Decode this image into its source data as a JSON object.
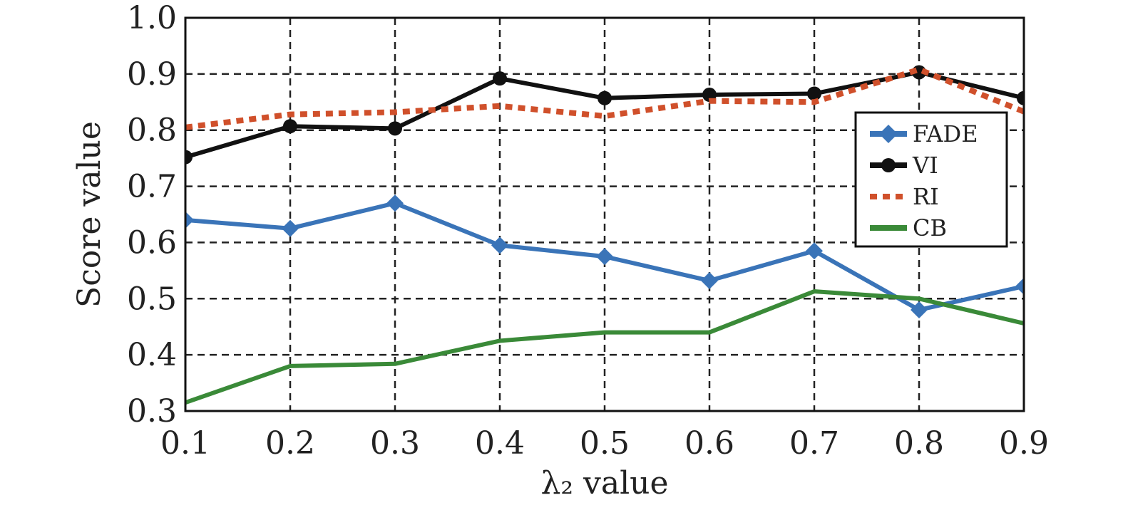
{
  "chart_data": {
    "type": "line",
    "title": "",
    "xlabel": "λ₂ value",
    "ylabel": "Score value",
    "x": [
      0.1,
      0.2,
      0.3,
      0.4,
      0.5,
      0.6,
      0.7,
      0.8,
      0.9
    ],
    "x_tick_labels": [
      "0.1",
      "0.2",
      "0.3",
      "0.4",
      "0.5",
      "0.6",
      "0.7",
      "0.8",
      "0.9"
    ],
    "y_tick_labels": [
      "0.3",
      "0.4",
      "0.5",
      "0.6",
      "0.7",
      "0.8",
      "0.9",
      "1.0"
    ],
    "xlim": [
      0.1,
      0.9
    ],
    "ylim": [
      0.3,
      1.0
    ],
    "grid": true,
    "legend_position": "right",
    "series": [
      {
        "name": "FADE",
        "color": "#3a74b8",
        "style": "solid",
        "marker": "diamond",
        "values": [
          0.64,
          0.625,
          0.67,
          0.595,
          0.575,
          0.532,
          0.585,
          0.48,
          0.522
        ]
      },
      {
        "name": "VI",
        "color": "#111111",
        "style": "solid",
        "marker": "circle",
        "values": [
          0.752,
          0.807,
          0.803,
          0.892,
          0.857,
          0.863,
          0.865,
          0.903,
          0.857
        ]
      },
      {
        "name": "RI",
        "color": "#d0502b",
        "style": "dotted",
        "marker": "none",
        "values": [
          0.805,
          0.828,
          0.832,
          0.843,
          0.825,
          0.852,
          0.85,
          0.908,
          0.833
        ]
      },
      {
        "name": "CB",
        "color": "#3a8a38",
        "style": "solid",
        "marker": "none",
        "values": [
          0.315,
          0.38,
          0.384,
          0.425,
          0.44,
          0.44,
          0.513,
          0.5,
          0.456
        ]
      }
    ]
  }
}
